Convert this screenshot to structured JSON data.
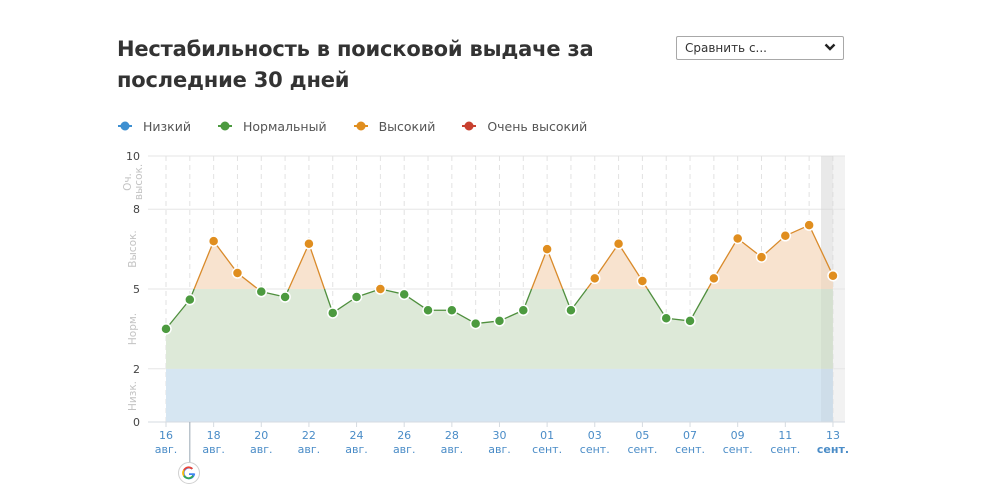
{
  "title": "Нестабильность в поисковой выдаче за последние 30 дней",
  "compare_dropdown": {
    "selected": "Сравнить с..."
  },
  "legend": [
    {
      "label": "Низкий",
      "color": "#3d8fd1"
    },
    {
      "label": "Нормальный",
      "color": "#4c9a3f"
    },
    {
      "label": "Высокий",
      "color": "#e08e1f"
    },
    {
      "label": "Очень высокий",
      "color": "#c8402f"
    }
  ],
  "chart_data": {
    "type": "line",
    "title": "Нестабильность в поисковой выдаче за последние 30 дней",
    "xlabel": "",
    "ylabel": "",
    "ylim": [
      0,
      10
    ],
    "y_ticks": [
      0,
      2,
      5,
      8,
      10
    ],
    "zones": [
      {
        "label": "Низк.",
        "from": 0,
        "to": 2,
        "color": "#d6e6f2"
      },
      {
        "label": "Норм.",
        "from": 2,
        "to": 5,
        "color": "#dde9d8"
      },
      {
        "label": "Высок.",
        "from": 5,
        "to": 8,
        "color": "#f8e3cf"
      },
      {
        "label": "Оч. высок.",
        "from": 8,
        "to": 10,
        "color": "#f6dad6"
      }
    ],
    "x_tick_labels": [
      {
        "day": "16",
        "month": "авг."
      },
      {
        "day": "18",
        "month": "авг."
      },
      {
        "day": "20",
        "month": "авг."
      },
      {
        "day": "22",
        "month": "авг."
      },
      {
        "day": "24",
        "month": "авг."
      },
      {
        "day": "26",
        "month": "авг."
      },
      {
        "day": "28",
        "month": "авг."
      },
      {
        "day": "30",
        "month": "авг."
      },
      {
        "day": "01",
        "month": "сент."
      },
      {
        "day": "03",
        "month": "сент."
      },
      {
        "day": "05",
        "month": "сент."
      },
      {
        "day": "07",
        "month": "сент."
      },
      {
        "day": "09",
        "month": "сент."
      },
      {
        "day": "11",
        "month": "сент."
      },
      {
        "day": "13",
        "month": "сент."
      }
    ],
    "x": [
      "16 авг.",
      "17 авг.",
      "18 авг.",
      "19 авг.",
      "20 авг.",
      "21 авг.",
      "22 авг.",
      "23 авг.",
      "24 авг.",
      "25 авг.",
      "26 авг.",
      "27 авг.",
      "28 авг.",
      "29 авг.",
      "30 авг.",
      "31 авг.",
      "01 сент.",
      "02 сент.",
      "03 сент.",
      "04 сент.",
      "05 сент.",
      "06 сент.",
      "07 сент.",
      "08 сент.",
      "09 сент.",
      "10 сент.",
      "11 сент.",
      "12 сент.",
      "13 сент."
    ],
    "series": [
      {
        "name": "Волатильность",
        "values": [
          3.5,
          4.6,
          6.8,
          5.6,
          4.9,
          4.7,
          6.7,
          4.1,
          4.7,
          5.0,
          4.8,
          4.2,
          4.2,
          3.7,
          3.8,
          4.2,
          6.5,
          4.2,
          5.4,
          6.7,
          5.3,
          3.9,
          3.8,
          5.4,
          6.9,
          6.2,
          7.0,
          7.4,
          5.5
        ]
      }
    ],
    "highlighted_day": "13 сент.",
    "annotations": [
      {
        "x": "17 авг.",
        "icon": "google-update"
      }
    ],
    "grid": true
  }
}
